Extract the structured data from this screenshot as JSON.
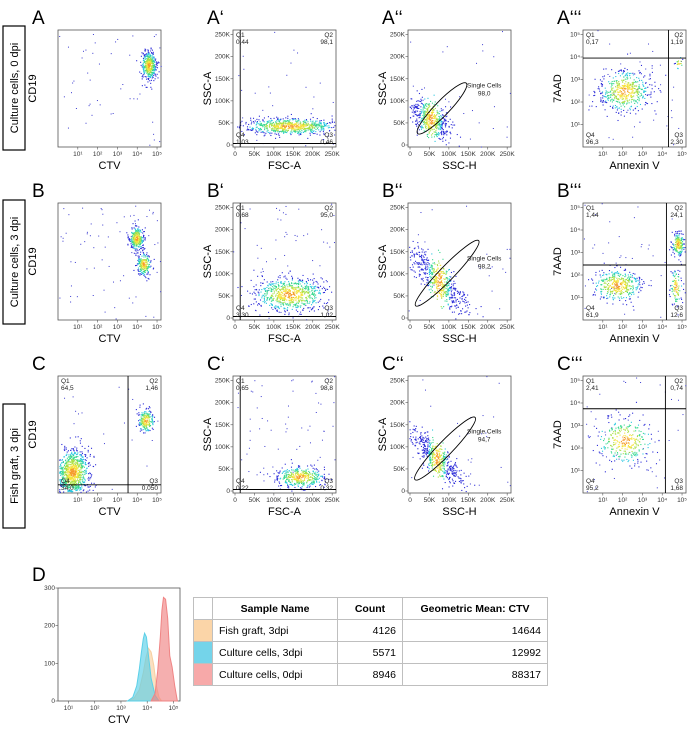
{
  "figure": {
    "row_labels": [
      "Culture cells, 0 dpi",
      "Culture cells, 3 dpi",
      "Fish graft, 3 dpi"
    ],
    "rows": [
      {
        "letters": [
          "A",
          "A‘",
          "A‘‘",
          "A‘‘‘"
        ],
        "p1": {
          "ylabel": "CD19",
          "xlabel": "CTV"
        },
        "p2": {
          "ylabel": "SSC-A",
          "xlabel": "FSC-A",
          "q": [
            {
              "name": "Q1",
              "value": "0,44"
            },
            {
              "name": "Q2",
              "value": "98,1"
            },
            {
              "name": "Q3",
              "value": "0,46"
            },
            {
              "name": "Q4",
              "value": "1,03"
            }
          ]
        },
        "p3": {
          "ylabel": "SSC-A",
          "xlabel": "SSC-H",
          "gate_name": "Single Cells",
          "gate_value": "98,0"
        },
        "p4": {
          "ylabel": "7AAD",
          "xlabel": "Annexin V",
          "q": [
            {
              "name": "Q1",
              "value": "0,17"
            },
            {
              "name": "Q2",
              "value": "1,19"
            },
            {
              "name": "Q3",
              "value": "2,30"
            },
            {
              "name": "Q4",
              "value": "96,3"
            }
          ]
        }
      },
      {
        "letters": [
          "B",
          "B‘",
          "B‘‘",
          "B‘‘‘"
        ],
        "p1": {
          "ylabel": "CD19",
          "xlabel": "CTV"
        },
        "p2": {
          "ylabel": "SSC-A",
          "xlabel": "FSC-A",
          "q": [
            {
              "name": "Q1",
              "value": "0,68"
            },
            {
              "name": "Q2",
              "value": "95,0"
            },
            {
              "name": "Q3",
              "value": "1,02"
            },
            {
              "name": "Q4",
              "value": "3,30"
            }
          ]
        },
        "p3": {
          "ylabel": "SSC-A",
          "xlabel": "SSC-H",
          "gate_name": "Single Cells",
          "gate_value": "98,2"
        },
        "p4": {
          "ylabel": "7AAD",
          "xlabel": "Annexin V",
          "q": [
            {
              "name": "Q1",
              "value": "1,44"
            },
            {
              "name": "Q2",
              "value": "24,1"
            },
            {
              "name": "Q3",
              "value": "12,6"
            },
            {
              "name": "Q4",
              "value": "61,9"
            }
          ]
        }
      },
      {
        "letters": [
          "C",
          "C‘",
          "C‘‘",
          "C‘‘‘"
        ],
        "p1": {
          "ylabel": "CD19",
          "xlabel": "CTV",
          "q": [
            {
              "name": "Q1",
              "value": "64,5"
            },
            {
              "name": "Q2",
              "value": "1,46"
            },
            {
              "name": "Q3",
              "value": "0,050"
            },
            {
              "name": "Q4",
              "value": "34,0"
            }
          ]
        },
        "p2": {
          "ylabel": "SSC-A",
          "xlabel": "FSC-A",
          "q": [
            {
              "name": "Q1",
              "value": "0,65"
            },
            {
              "name": "Q2",
              "value": "98,8"
            },
            {
              "name": "Q3",
              "value": "0,32"
            },
            {
              "name": "Q4",
              "value": "0,22"
            }
          ]
        },
        "p3": {
          "ylabel": "SSC-A",
          "xlabel": "SSC-H",
          "gate_name": "Single Cells",
          "gate_value": "94,7"
        },
        "p4": {
          "ylabel": "7AAD",
          "xlabel": "Annexin V",
          "q": [
            {
              "name": "Q1",
              "value": "2,41"
            },
            {
              "name": "Q2",
              "value": "0,74"
            },
            {
              "name": "Q3",
              "value": "1,68"
            },
            {
              "name": "Q4",
              "value": "95,2"
            }
          ]
        }
      }
    ],
    "log_ticks": [
      "10¹",
      "10²",
      "10³",
      "10⁴",
      "10⁵"
    ],
    "lin_ticks": [
      "0",
      "50K",
      "100K",
      "150K",
      "200K",
      "250K"
    ],
    "lin_yticks": [
      "0",
      "50K",
      "100K",
      "150K",
      "200K",
      "250K"
    ],
    "log_yticks": [
      "10¹",
      "10²",
      "10³",
      "10⁴",
      "10⁵"
    ]
  },
  "chart_data": {
    "type": "area",
    "title": "",
    "panel_letter": "D",
    "xlabel": "CTV",
    "ylabel": "",
    "xscale": "log",
    "ylim": [
      0,
      300
    ],
    "yticks": [
      "0",
      "100",
      "200",
      "300"
    ],
    "xticks": [
      "10¹",
      "10²",
      "10³",
      "10⁴",
      "10⁵"
    ],
    "series": [
      {
        "name": "Fish graft, 3dpi",
        "color": "#f7cfa0",
        "x_log": [
          3.3,
          3.5,
          3.7,
          3.85,
          3.95,
          4.05,
          4.15,
          4.25,
          4.35,
          4.45,
          4.55
        ],
        "values": [
          0,
          8,
          30,
          75,
          115,
          140,
          130,
          95,
          40,
          10,
          0
        ]
      },
      {
        "name": "Culture cells, 3dpi",
        "color": "#5bd0e8",
        "x_log": [
          3.25,
          3.45,
          3.6,
          3.7,
          3.78,
          3.85,
          3.9,
          3.97,
          4.05,
          4.15,
          4.3,
          4.45
        ],
        "values": [
          0,
          10,
          40,
          85,
          130,
          165,
          180,
          170,
          120,
          60,
          15,
          0
        ]
      },
      {
        "name": "Culture cells, 0dpi",
        "color": "#f08484",
        "x_log": [
          4.15,
          4.3,
          4.4,
          4.5,
          4.56,
          4.62,
          4.7,
          4.78,
          4.86,
          4.95,
          5.05,
          5.15
        ],
        "values": [
          0,
          20,
          80,
          170,
          240,
          275,
          270,
          220,
          120,
          90,
          40,
          0
        ]
      }
    ]
  },
  "table": {
    "headers": [
      "Sample Name",
      "Count",
      "Geometric Mean: CTV"
    ],
    "rows": [
      {
        "color": "#fbd5a8",
        "name": "Fish graft, 3dpi",
        "count": "4126",
        "gmean": "14644"
      },
      {
        "color": "#74d4ea",
        "name": "Culture cells, 3dpi",
        "count": "5571",
        "gmean": "12992"
      },
      {
        "color": "#f7a9a9",
        "name": "Culture cells, 0dpi",
        "count": "8946",
        "gmean": "88317"
      }
    ]
  }
}
